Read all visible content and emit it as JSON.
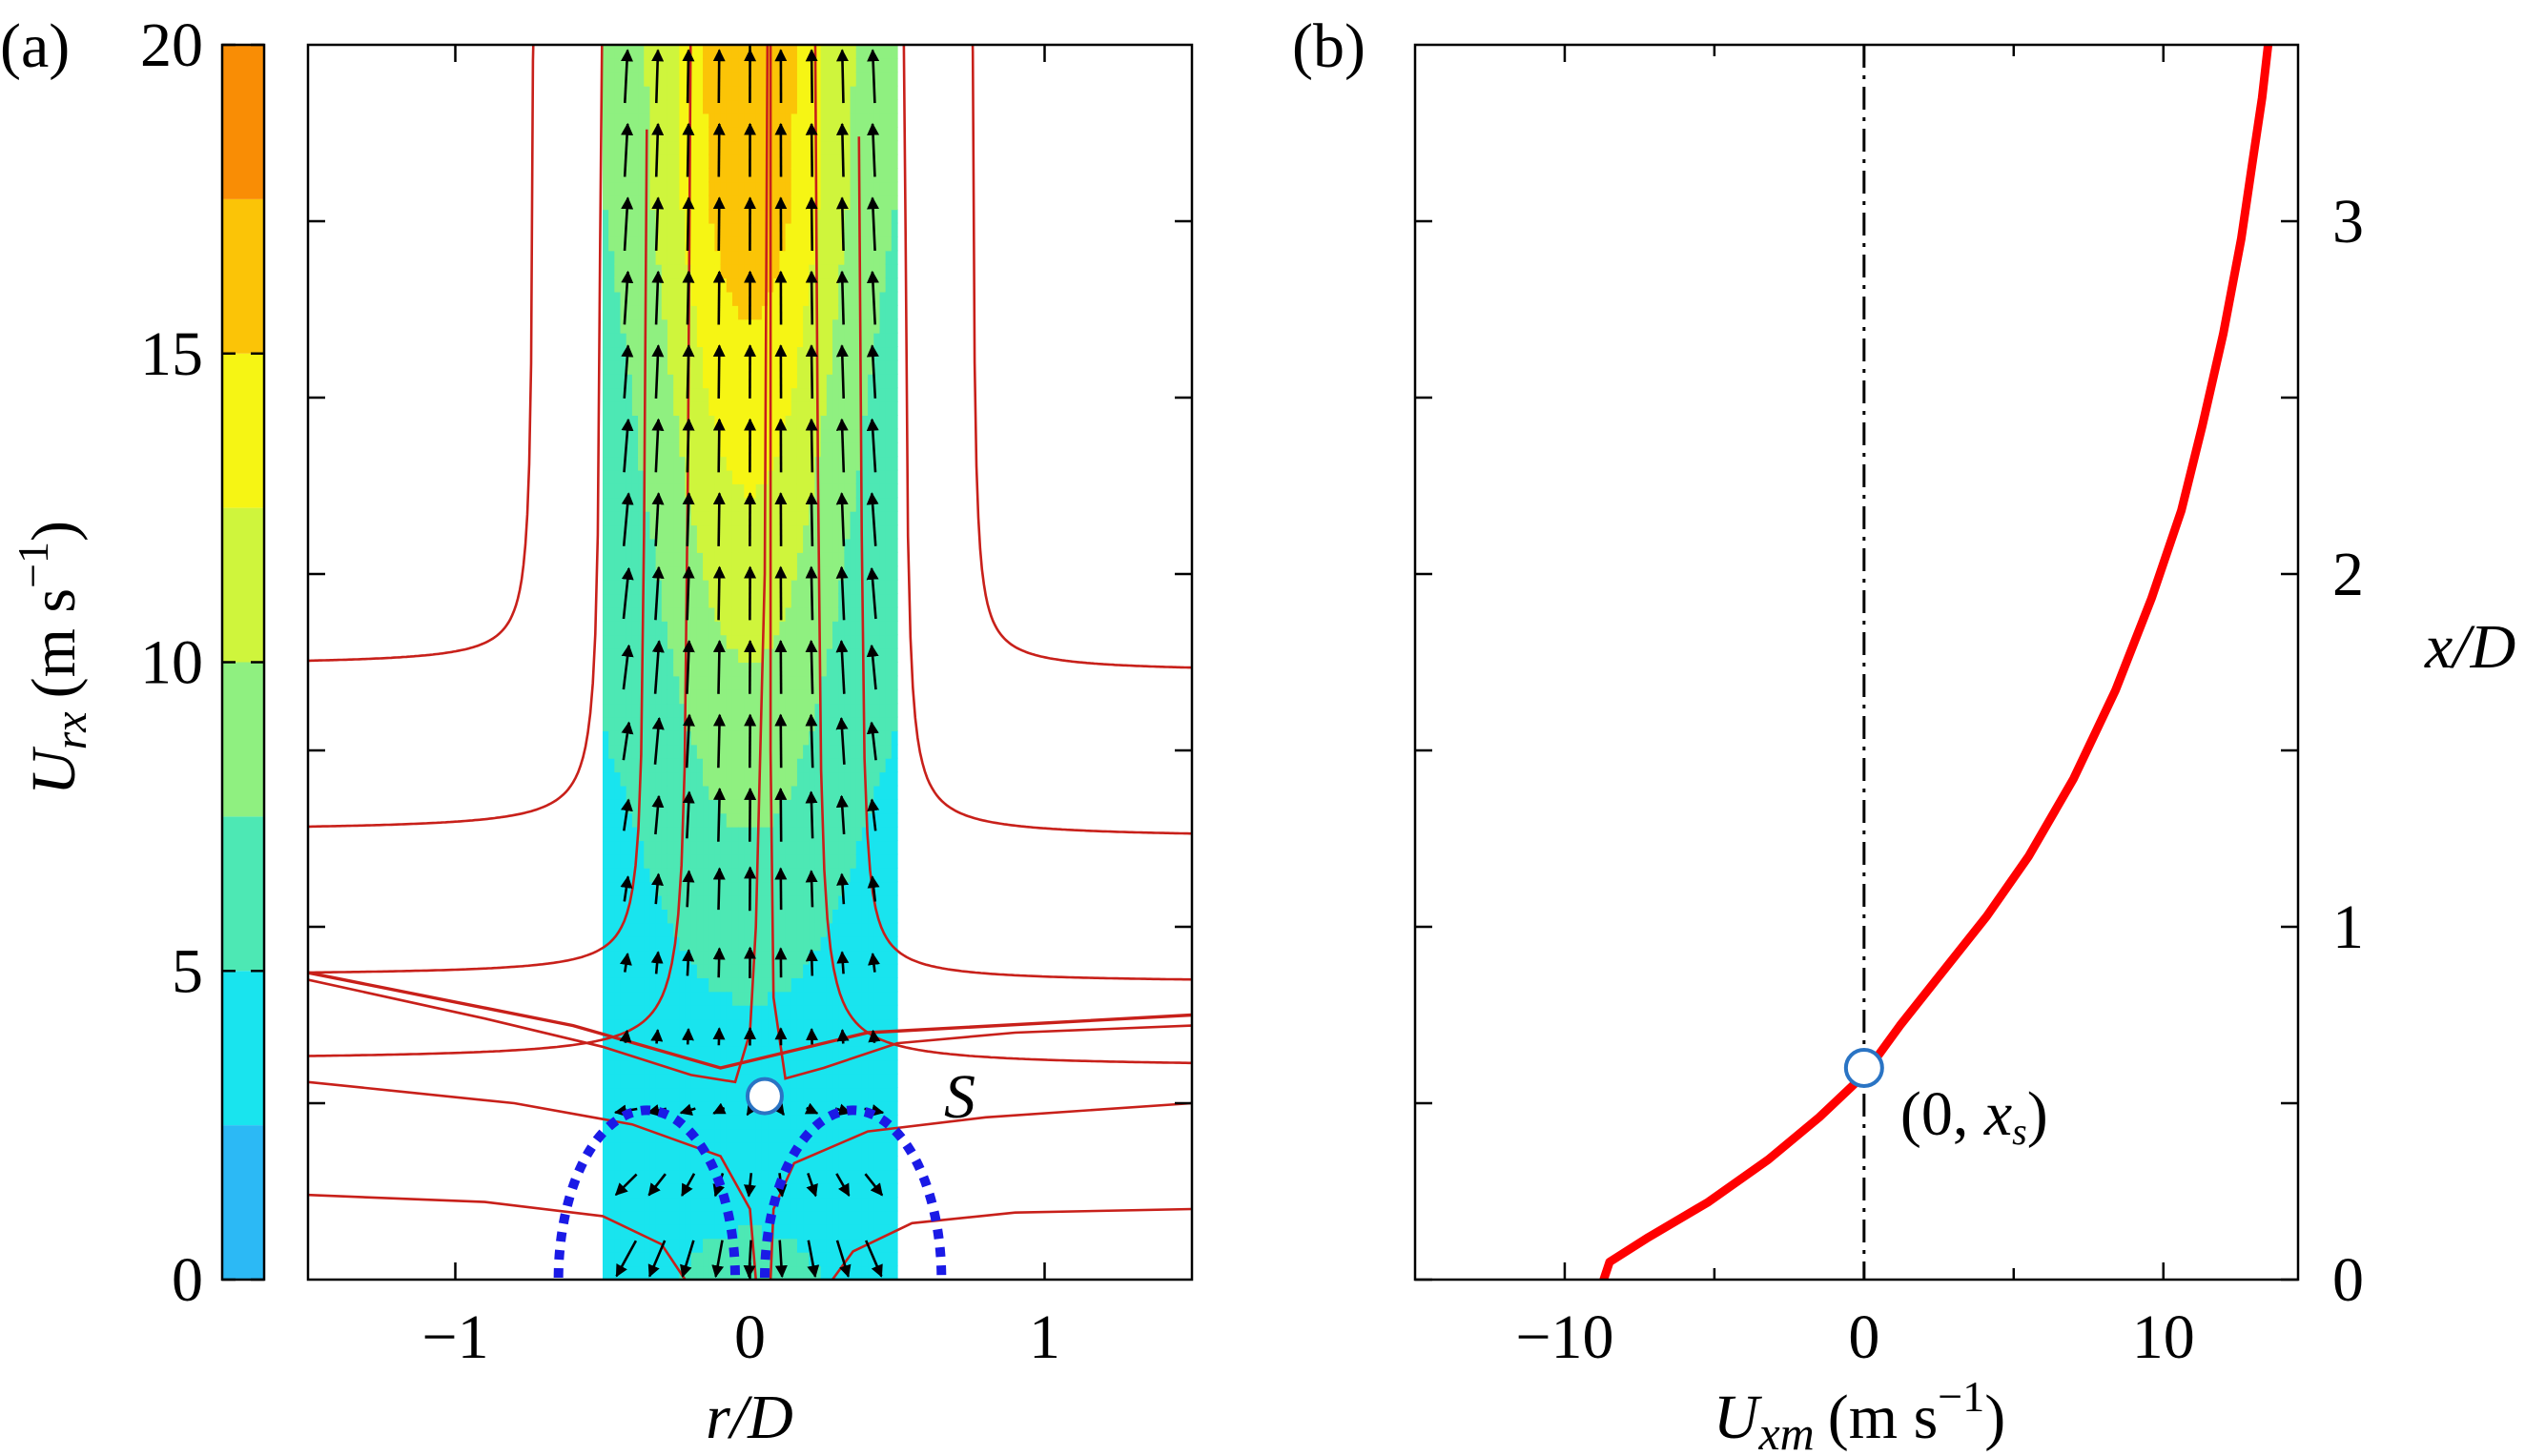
{
  "panel_a": {
    "label": "(a)",
    "colorbar": {
      "title_main": "U",
      "title_sub": "rx",
      "title_units_prefix": "(m s",
      "title_units_exp": "−1",
      "title_units_suffix": ")",
      "ticks": [
        "0",
        "5",
        "10",
        "15",
        "20"
      ],
      "levels": [
        0,
        2.5,
        5,
        7.5,
        10,
        12.5,
        15,
        17.5,
        20
      ],
      "colors": [
        "#2cb9f5",
        "#19e4ee",
        "#4de8b4",
        "#8ff080",
        "#cff53c",
        "#f6f514",
        "#fbc407",
        "#f98d05",
        "#f74b02"
      ]
    },
    "xlabel_main": "r",
    "xlabel_suffix": "/D",
    "xticks": [
      "−1",
      "0",
      "1"
    ],
    "stagnation_label": "S"
  },
  "panel_b": {
    "label": "(b)",
    "xlabel_main": "U",
    "xlabel_sub": "xm",
    "xlabel_units_prefix": "(m s",
    "xlabel_units_exp": "−1",
    "xlabel_units_suffix": ")",
    "ylabel": "x/D",
    "xticks": [
      "−10",
      "0",
      "10"
    ],
    "yticks": [
      "0",
      "1",
      "2",
      "3"
    ],
    "point_label_prefix": "(0, ",
    "point_label_var": "x",
    "point_label_sub": "s",
    "point_label_suffix": ")"
  },
  "chart_data": [
    {
      "type": "contour",
      "title": "(a)",
      "xlabel": "r/D",
      "ylabel": "",
      "xlim": [
        -1.5,
        1.5
      ],
      "ylim": [
        0,
        3.5
      ],
      "colorbar_label": "U_rx (m s^-1)",
      "colorbar_range": [
        0,
        20
      ],
      "measured_region_r": [
        -0.5,
        0.5
      ],
      "stagnation_point": {
        "r": 0.05,
        "x": 0.52,
        "label": "S"
      },
      "recirculation_bubbles": [
        {
          "r_center": -0.35,
          "x_top": 0.48
        },
        {
          "r_center": 0.35,
          "x_top": 0.48
        }
      ]
    },
    {
      "type": "line",
      "title": "(b)",
      "xlabel": "U_xm (m s^-1)",
      "ylabel": "x/D",
      "xlim": [
        -15,
        14.5
      ],
      "ylim": [
        0,
        3.5
      ],
      "series": [
        {
          "name": "U_xm",
          "color": "#ff0000",
          "x": [
            -8.7,
            -8.5,
            -7.2,
            -5.2,
            -3.2,
            -1.5,
            0,
            1.2,
            2.6,
            4.1,
            5.5,
            7.0,
            8.4,
            9.6,
            10.6,
            11.3,
            12.0,
            12.6,
            13.0,
            13.3,
            13.5
          ],
          "y": [
            0,
            0.05,
            0.12,
            0.22,
            0.34,
            0.46,
            0.58,
            0.72,
            0.87,
            1.03,
            1.2,
            1.42,
            1.67,
            1.93,
            2.18,
            2.42,
            2.68,
            2.95,
            3.18,
            3.35,
            3.5
          ]
        }
      ],
      "marker": {
        "x": 0,
        "y": 0.6,
        "label": "(0, x_s)"
      },
      "reference_line_x": 0
    }
  ]
}
